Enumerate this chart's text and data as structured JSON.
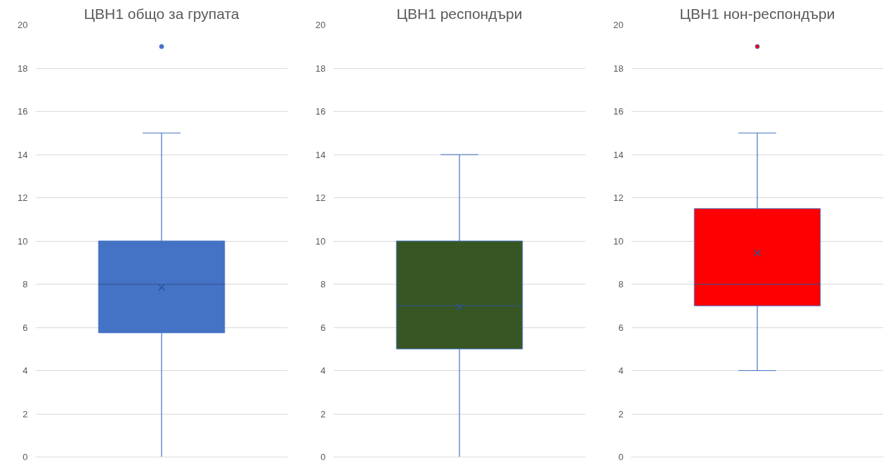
{
  "chart_data": [
    {
      "type": "box",
      "title": "ЦВН1 общо за групата",
      "categories": [
        null
      ],
      "series": [
        {
          "color": "#4472c4",
          "boxes": [
            {
              "low": 0,
              "q1": 5.75,
              "median": 8,
              "q3": 10,
              "high": 15,
              "mean": 7.85,
              "outliers": [
                19
              ]
            }
          ]
        }
      ],
      "ylim": [
        0,
        20
      ],
      "yticks": [
        0,
        2,
        4,
        6,
        8,
        10,
        12,
        14,
        16,
        18,
        20
      ],
      "grid": "y",
      "tick_labels": "y"
    },
    {
      "type": "box",
      "title": "ЦВН1 респондъри",
      "categories": [
        null
      ],
      "series": [
        {
          "color": "#375623",
          "boxes": [
            {
              "low": 0,
              "q1": 5,
              "median": 7,
              "q3": 10,
              "high": 14,
              "mean": 6.95
            }
          ]
        }
      ],
      "ylim": [
        0,
        20
      ],
      "yticks": [
        0,
        2,
        4,
        6,
        8,
        10,
        12,
        14,
        16,
        18,
        20
      ],
      "grid": "y",
      "tick_labels": "y"
    },
    {
      "type": "box",
      "title": "ЦВН1 нон-респондъри",
      "categories": [
        null
      ],
      "series": [
        {
          "color": "#ff0000",
          "boxes": [
            {
              "low": 4,
              "q1": 7,
              "median": 8,
              "q3": 11.5,
              "high": 15,
              "mean": 9.45,
              "outliers": [
                19
              ]
            }
          ]
        }
      ],
      "ylim": [
        0,
        20
      ],
      "yticks": [
        0,
        2,
        4,
        6,
        8,
        10,
        12,
        14,
        16,
        18,
        20
      ],
      "grid": "y",
      "tick_labels": "y"
    }
  ]
}
